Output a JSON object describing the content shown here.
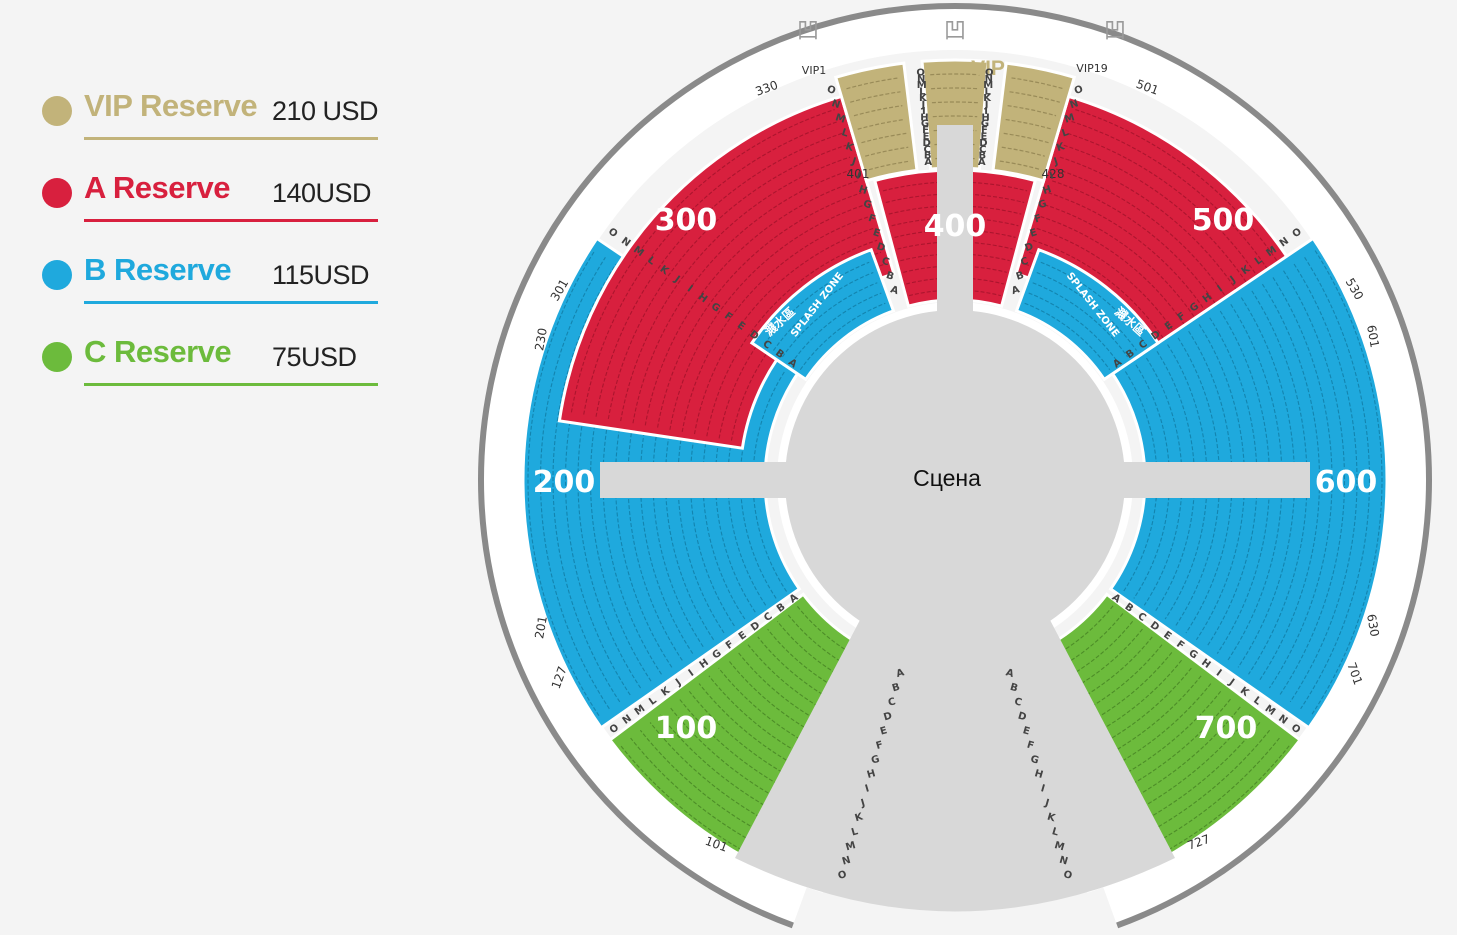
{
  "legend": [
    {
      "name": "VIP Reserve",
      "price": "210 USD",
      "color": "#c2b37a"
    },
    {
      "name": "A Reserve",
      "price": "140USD",
      "color": "#d8203e"
    },
    {
      "name": "B Reserve",
      "price": "115USD",
      "color": "#1fa9dd"
    },
    {
      "name": "C Reserve",
      "price": "75USD",
      "color": "#6cbb3c"
    }
  ],
  "stage": {
    "label": "Сцена",
    "color": "#d8d8d8"
  },
  "sections": [
    {
      "id": "100",
      "label": "100",
      "tier": "C",
      "start_seat": "101",
      "end_seat": "127"
    },
    {
      "id": "200",
      "label": "200",
      "tier": "B",
      "start_seat": "201",
      "end_seat": "230"
    },
    {
      "id": "300",
      "label": "300",
      "tier": "A",
      "start_seat": "301",
      "end_seat": "330"
    },
    {
      "id": "400",
      "label": "400",
      "tier": "A",
      "start_seat": "401",
      "end_seat": "428"
    },
    {
      "id": "500",
      "label": "500",
      "tier": "A",
      "start_seat": "501",
      "end_seat": "530"
    },
    {
      "id": "600",
      "label": "600",
      "tier": "B",
      "start_seat": "601",
      "end_seat": "630"
    },
    {
      "id": "700",
      "label": "700",
      "tier": "C",
      "start_seat": "701",
      "end_seat": "727"
    }
  ],
  "vip": {
    "label": "VIP",
    "left_box": "VIP1",
    "right_box": "VIP19",
    "rows": [
      "E",
      "D",
      "C",
      "B",
      "A"
    ]
  },
  "row_letters": [
    "O",
    "N",
    "M",
    "L",
    "K",
    "J",
    "I",
    "H",
    "G",
    "F",
    "E",
    "D",
    "C",
    "B",
    "A"
  ],
  "splash": {
    "label": "SPLASH ZONE",
    "cn": "濺水區"
  },
  "entrance_mark": "凹"
}
